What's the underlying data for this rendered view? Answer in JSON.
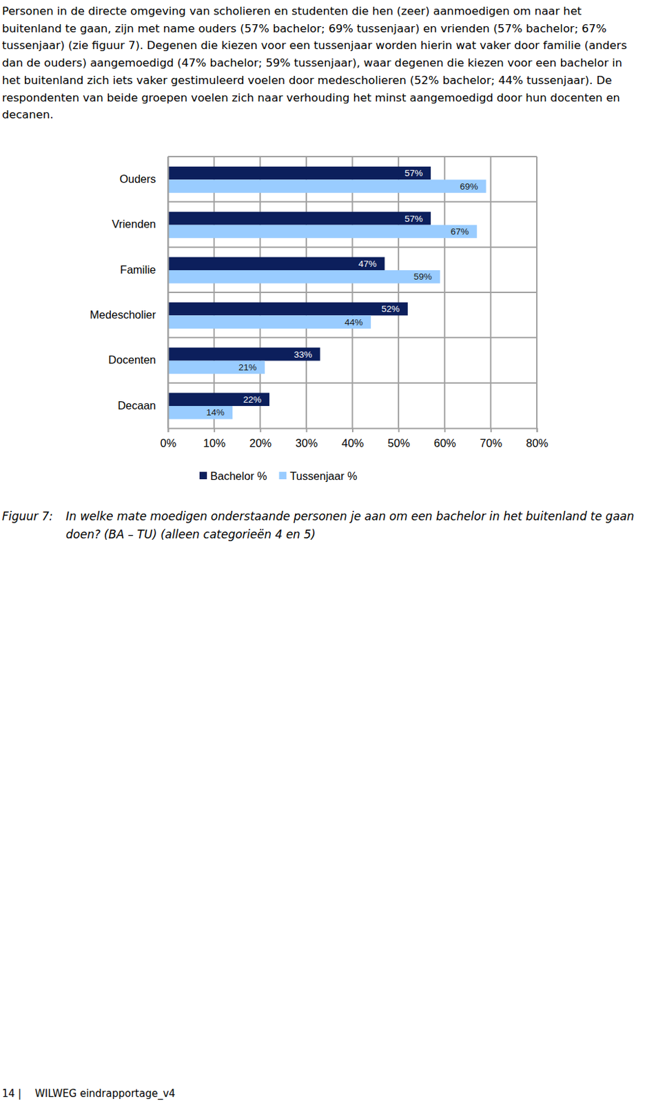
{
  "chart_data": {
    "type": "bar",
    "orientation": "horizontal",
    "categories": [
      "Ouders",
      "Vrienden",
      "Familie",
      "Medescholier",
      "Docenten",
      "Decaan"
    ],
    "series": [
      {
        "name": "Bachelor %",
        "color": "#0c1f5c",
        "values": [
          57,
          57,
          47,
          52,
          33,
          22
        ],
        "value_labels": [
          "57%",
          "57%",
          "47%",
          "52%",
          "33%",
          "22%"
        ]
      },
      {
        "name": "Tussenjaar %",
        "color": "#99ccff",
        "values": [
          69,
          67,
          59,
          44,
          21,
          14
        ],
        "value_labels": [
          "69%",
          "67%",
          "59%",
          "44%",
          "21%",
          "14%"
        ]
      }
    ],
    "xlim": [
      0,
      80
    ],
    "xticks": [
      {
        "value": 0,
        "label": "0%"
      },
      {
        "value": 10,
        "label": "10%"
      },
      {
        "value": 20,
        "label": "20%"
      },
      {
        "value": 30,
        "label": "30%"
      },
      {
        "value": 40,
        "label": "40%"
      },
      {
        "value": 50,
        "label": "50%"
      },
      {
        "value": 60,
        "label": "60%"
      },
      {
        "value": 70,
        "label": "70%"
      },
      {
        "value": 80,
        "label": "80%"
      }
    ],
    "grid": true,
    "data_labels": true,
    "legend": "bottom"
  },
  "document": {
    "paragraph": "Personen in de directe omgeving van scholieren en studenten die hen (zeer) aanmoedigen om naar het buitenland te gaan, zijn met name ouders (57% bachelor; 69% tussenjaar) en vrienden (57% bachelor; 67% tussenjaar) (zie figuur 7). Degenen die kiezen voor een tussenjaar worden hierin wat vaker door familie (anders dan de ouders) aangemoedigd (47% bachelor; 59% tussenjaar), waar degenen die kiezen voor een bachelor in het buitenland zich iets vaker gestimuleerd voelen door medescholieren (52% bachelor; 44% tussenjaar). De respondenten van beide groepen voelen zich naar verhouding het minst aangemoedigd door hun docenten en decanen.",
    "caption_label": "Figuur 7:",
    "caption": "In welke mate moedigen onderstaande personen je aan om een bachelor in het buitenland te gaan doen? (BA – TU) (alleen categorieën 4 en 5)",
    "footer_page": "14 |",
    "footer_text": "WILWEG eindrapportage_v4"
  }
}
